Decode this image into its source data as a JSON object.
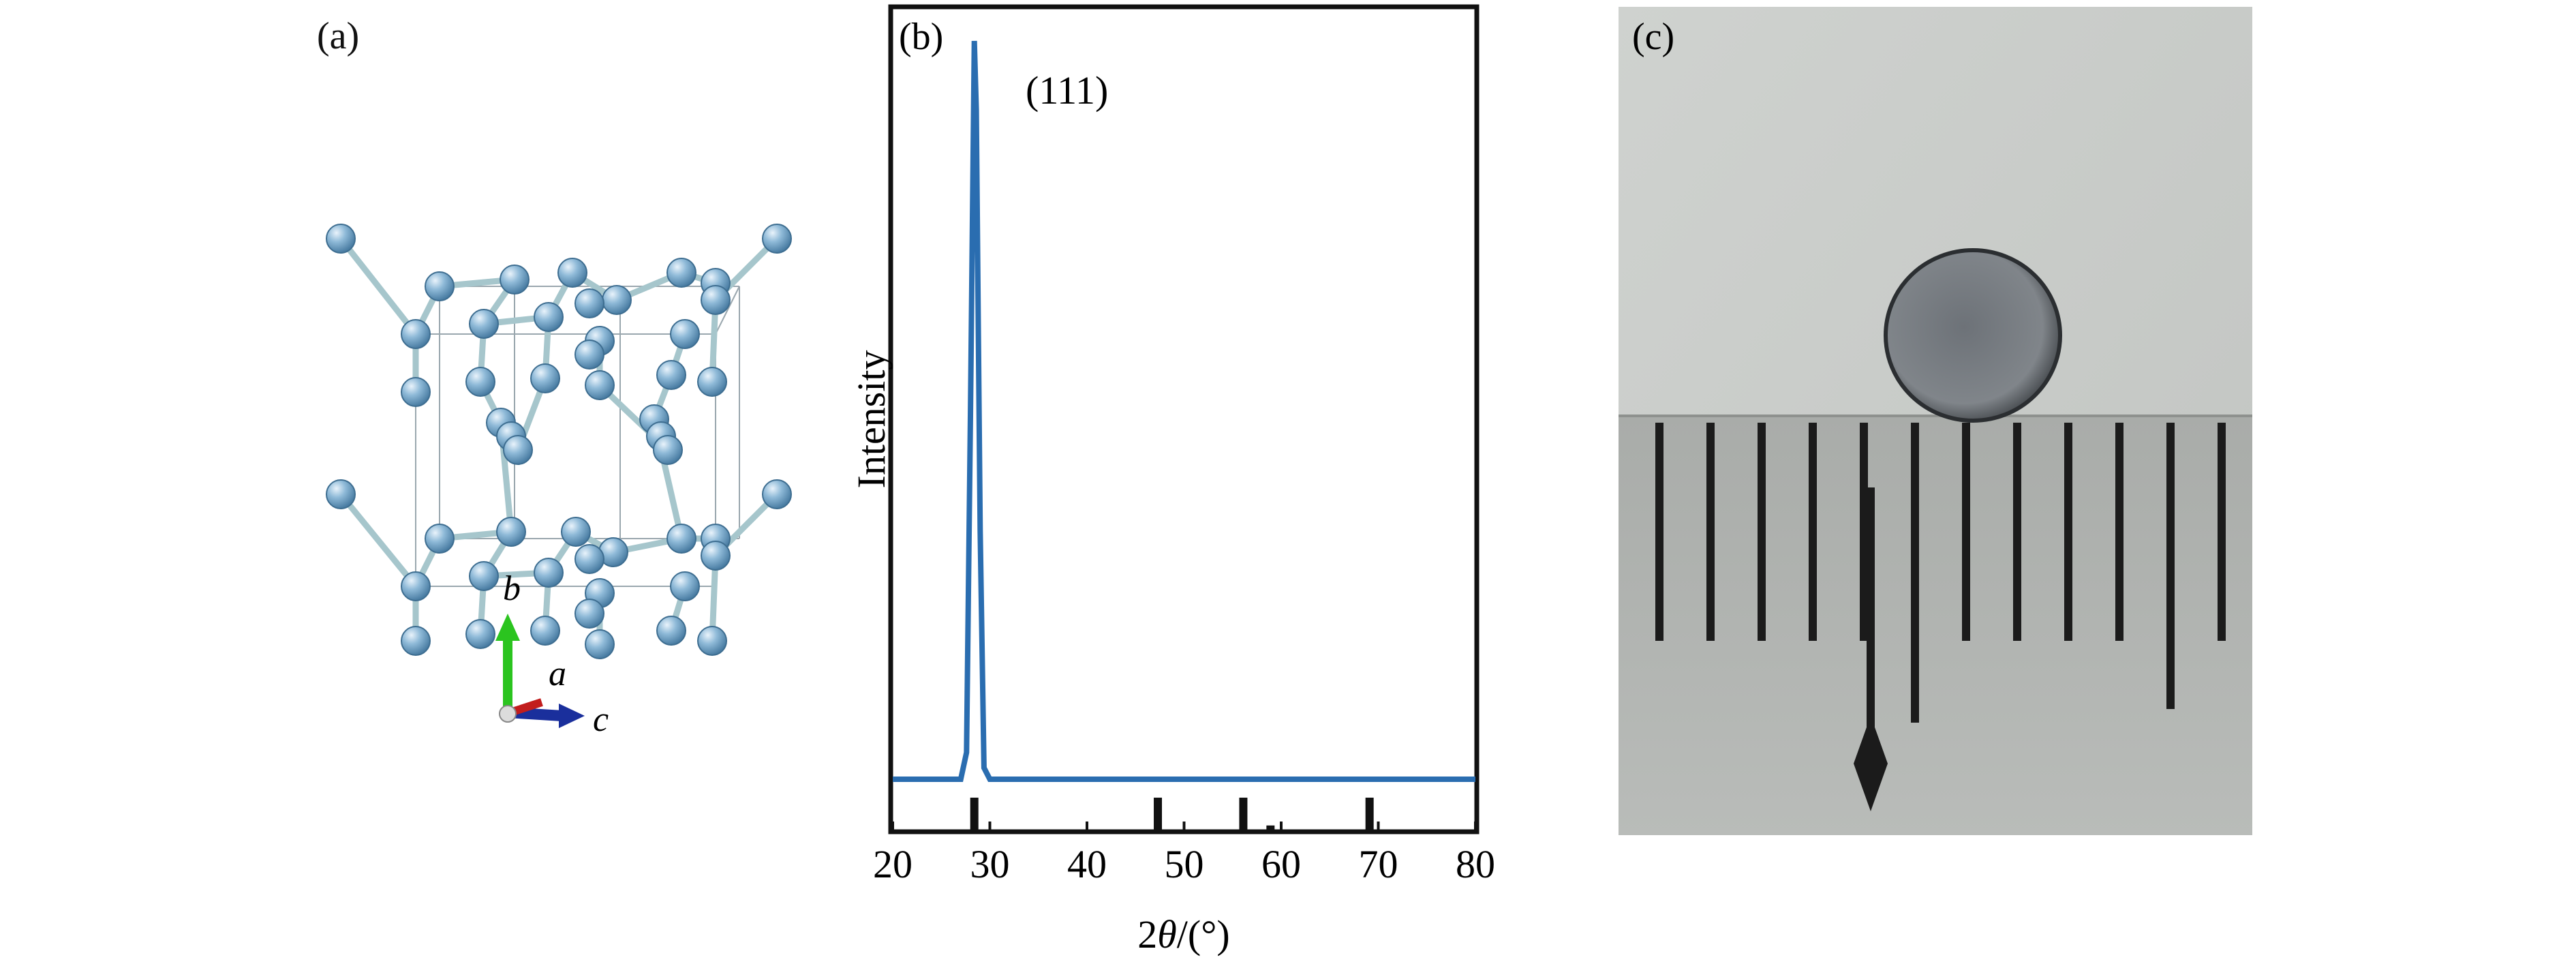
{
  "figure": {
    "panel_a": {
      "label": "(a)",
      "axes": {
        "b": "b",
        "a": "a",
        "c": "c"
      }
    },
    "panel_b": {
      "label": "(b)",
      "peak_label": "(111)"
    },
    "panel_c": {
      "label": "(c)"
    }
  },
  "chart_data": {
    "type": "line",
    "title": "",
    "xlabel_prefix": "2",
    "xlabel_symbol": "θ",
    "xlabel_suffix": "/(°)",
    "ylabel": "Intensity",
    "xlim": [
      20,
      80
    ],
    "ylim": [
      0,
      1
    ],
    "xticks": [
      20,
      30,
      40,
      50,
      60,
      70,
      80
    ],
    "grid": false,
    "legend": "none",
    "colors": {
      "line": "#2a6db0",
      "reference": "#111111",
      "frame": "#111111"
    },
    "series": [
      {
        "x": [
          20,
          27.0,
          27.6,
          28.0,
          28.4,
          28.6,
          29.0,
          29.4,
          30,
          40,
          50,
          60,
          70,
          80
        ],
        "values": [
          0.025,
          0.025,
          0.06,
          0.5,
          0.99,
          0.9,
          0.35,
          0.04,
          0.025,
          0.025,
          0.025,
          0.025,
          0.025,
          0.025
        ]
      }
    ],
    "reference_peaks": {
      "x": [
        28.4,
        47.3,
        56.1,
        58.9,
        69.1
      ],
      "values": [
        1.0,
        1.0,
        1.0,
        0.15,
        1.0
      ]
    },
    "annotations": [
      {
        "text": "(111)",
        "x": 28.4
      }
    ]
  }
}
